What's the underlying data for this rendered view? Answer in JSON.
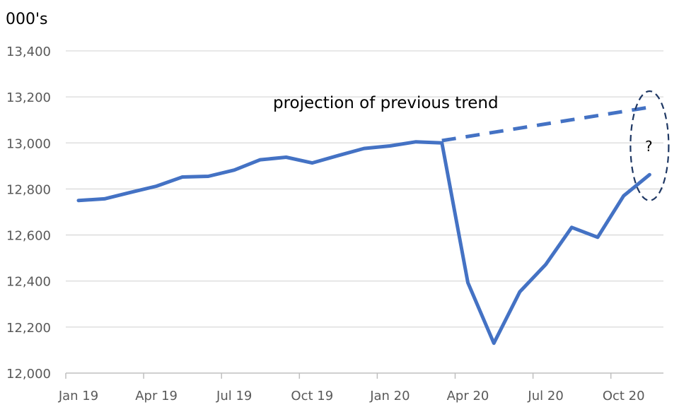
{
  "chart_data": {
    "type": "line",
    "ylabel": "000's",
    "ylim": [
      12000,
      13400
    ],
    "y_ticks": [
      12000,
      12200,
      12400,
      12600,
      12800,
      13000,
      13200,
      13400
    ],
    "y_tick_labels": [
      "12,000",
      "12,200",
      "12,400",
      "12,600",
      "12,800",
      "13,000",
      "13,200",
      "13,400"
    ],
    "x_tick_labels": [
      "Jan 19",
      "Apr 19",
      "Jul 19",
      "Oct 19",
      "Jan 20",
      "Apr 20",
      "Jul 20",
      "Oct 20"
    ],
    "x": [
      "Jan 19",
      "Feb 19",
      "Mar 19",
      "Apr 19",
      "May 19",
      "Jun 19",
      "Jul 19",
      "Aug 19",
      "Sep 19",
      "Oct 19",
      "Nov 19",
      "Dec 19",
      "Jan 20",
      "Feb 20",
      "Mar 20",
      "Apr 20",
      "May 20",
      "Jun 20",
      "Jul 20",
      "Aug 20",
      "Sep 20",
      "Oct 20",
      "Nov 20"
    ],
    "grid": true,
    "series": [
      {
        "values": [
          12750,
          12757,
          12785,
          12812,
          12852,
          12855,
          12882,
          12927,
          12938,
          12913,
          12945,
          12976,
          12987,
          13005,
          13000,
          12393,
          12130,
          12353,
          12472,
          12633,
          12590,
          12770,
          12862
        ],
        "color": "#4472C4",
        "style": "solid"
      },
      {
        "x": [
          "Mar 20",
          "Nov 20"
        ],
        "values": [
          13010,
          13155
        ],
        "color": "#4472C4",
        "style": "dashed"
      }
    ],
    "annotations": {
      "projection_label": "projection of previous trend",
      "question_mark": "?"
    },
    "highlight_ellipse": {
      "color": "#1F3864",
      "style": "dashed",
      "x": "Nov 20",
      "y_range": [
        12750,
        13225
      ]
    }
  }
}
